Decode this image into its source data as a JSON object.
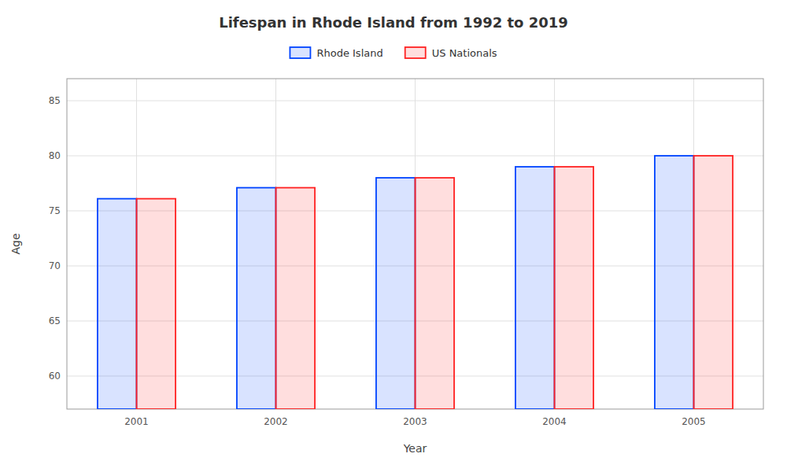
{
  "chart_data": {
    "type": "bar",
    "title": "Lifespan in Rhode Island from 1992 to 2019",
    "x_label": "Year",
    "y_label": "Age",
    "categories": [
      "2001",
      "2002",
      "2003",
      "2004",
      "2005"
    ],
    "series": [
      {
        "name": "Rhode Island",
        "color": "#0044ff",
        "values": [
          76.1,
          77.1,
          78.0,
          79.0,
          80.0
        ]
      },
      {
        "name": "US Nationals",
        "color": "#ff2222",
        "values": [
          76.1,
          77.1,
          78.0,
          79.0,
          80.0
        ]
      }
    ],
    "ylim": [
      57,
      87
    ],
    "yticks": [
      60,
      65,
      70,
      75,
      80,
      85
    ],
    "grid": true,
    "legend": "top"
  }
}
